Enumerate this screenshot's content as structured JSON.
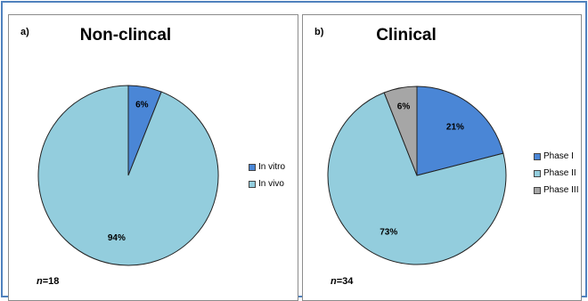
{
  "chart_data": [
    {
      "type": "pie",
      "panel_label": "a)",
      "title": "Non-clincal",
      "n_label": "=18",
      "n_symbol": "n",
      "categories": [
        "In vitro",
        "In vivo"
      ],
      "values": [
        6,
        94
      ],
      "data_labels": [
        "6%",
        "94%"
      ],
      "colors": [
        "#4a86d6",
        "#93cddd"
      ],
      "legend": "right"
    },
    {
      "type": "pie",
      "panel_label": "b)",
      "title": "Clinical",
      "n_label": "=34",
      "n_symbol": "n",
      "categories": [
        "Phase I",
        "Phase II",
        "Phase III"
      ],
      "values": [
        21,
        73,
        6
      ],
      "data_labels": [
        "21%",
        "73%",
        "6%"
      ],
      "colors": [
        "#4a86d6",
        "#93cddd",
        "#a6a6a6"
      ],
      "legend": "right"
    }
  ]
}
